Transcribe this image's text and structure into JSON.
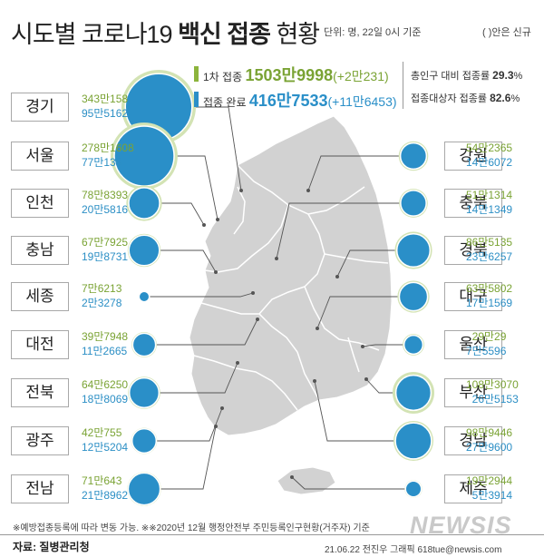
{
  "title": {
    "part1": "시도별 코로나19 ",
    "bold": "백신 접종",
    "part2": " 현황"
  },
  "unit": "단위: 명, 22일 0시 기준",
  "paren_note": "( )안은 신규",
  "summary": {
    "first_label": "1차 접종",
    "first_value": "1503만9998",
    "first_new": "(+2만231)",
    "complete_label": "접종 완료",
    "complete_value": "416만7533",
    "complete_new": "(+11만6453)",
    "rate_total_label": "총인구 대비 접종률",
    "rate_total": "29.3",
    "rate_target_label": "접종대상자 접종률",
    "rate_target": "82.6",
    "percent": "%"
  },
  "colors": {
    "first": "#8cb43c",
    "complete": "#2a8fc8",
    "halo": "#d3e3b4",
    "map": "#d2d2d2",
    "map_stroke": "#ffffff",
    "leader": "#555555"
  },
  "chart_data": {
    "type": "bubble-map",
    "series": [
      {
        "name": "1차 접종",
        "color": "#8cb43c"
      },
      {
        "name": "접종 완료",
        "color": "#2a8fc8"
      }
    ],
    "regions": [
      {
        "name": "경기",
        "first_text": "343만158",
        "complete_text": "95만5162",
        "first": 3430158,
        "complete": 955162,
        "side": "left"
      },
      {
        "name": "서울",
        "first_text": "278만1608",
        "complete_text": "77만136",
        "first": 2781608,
        "complete": 770136,
        "side": "left"
      },
      {
        "name": "인천",
        "first_text": "78만8393",
        "complete_text": "20만5816",
        "first": 788393,
        "complete": 205816,
        "side": "left"
      },
      {
        "name": "충남",
        "first_text": "67만7925",
        "complete_text": "19만8731",
        "first": 677925,
        "complete": 198731,
        "side": "left"
      },
      {
        "name": "세종",
        "first_text": "7만6213",
        "complete_text": "2만3278",
        "first": 76213,
        "complete": 23278,
        "side": "left"
      },
      {
        "name": "대전",
        "first_text": "39만7948",
        "complete_text": "11만2665",
        "first": 397948,
        "complete": 112665,
        "side": "left"
      },
      {
        "name": "전북",
        "first_text": "64만6250",
        "complete_text": "18만8069",
        "first": 646250,
        "complete": 188069,
        "side": "left"
      },
      {
        "name": "광주",
        "first_text": "42만755",
        "complete_text": "12만5204",
        "first": 420755,
        "complete": 125204,
        "side": "left"
      },
      {
        "name": "전남",
        "first_text": "71만643",
        "complete_text": "21만8962",
        "first": 710643,
        "complete": 218962,
        "side": "left"
      },
      {
        "name": "강원",
        "first_text": "54만2365",
        "complete_text": "14만6072",
        "first": 542365,
        "complete": 146072,
        "side": "right"
      },
      {
        "name": "충북",
        "first_text": "51만1314",
        "complete_text": "14만1349",
        "first": 511314,
        "complete": 141349,
        "side": "right"
      },
      {
        "name": "경북",
        "first_text": "86만5135",
        "complete_text": "23만6257",
        "first": 865135,
        "complete": 236257,
        "side": "right"
      },
      {
        "name": "대구",
        "first_text": "63만5802",
        "complete_text": "17만1569",
        "first": 635802,
        "complete": 171569,
        "side": "right"
      },
      {
        "name": "울산",
        "first_text": "29만29",
        "complete_text": "7만5596",
        "first": 290029,
        "complete": 75596,
        "side": "right"
      },
      {
        "name": "부산",
        "first_text": "108만3070",
        "complete_text": "26만5153",
        "first": 1083070,
        "complete": 265153,
        "side": "right"
      },
      {
        "name": "경남",
        "first_text": "98만9446",
        "complete_text": "27만9600",
        "first": 989446,
        "complete": 279600,
        "side": "right"
      },
      {
        "name": "제주",
        "first_text": "19만2944",
        "complete_text": "5만3914",
        "first": 192944,
        "complete": 53914,
        "side": "right"
      }
    ]
  },
  "footnote": "※예방접종등록에 따라 변동 가능. ※※2020년 12월 행정안전부 주민등록인구현황(거주자) 기준",
  "source": "자료: 질병관리청",
  "credit": "21.06.22 전진우 그래픽 618tue@newsis.com",
  "logo": "NEWSIS"
}
